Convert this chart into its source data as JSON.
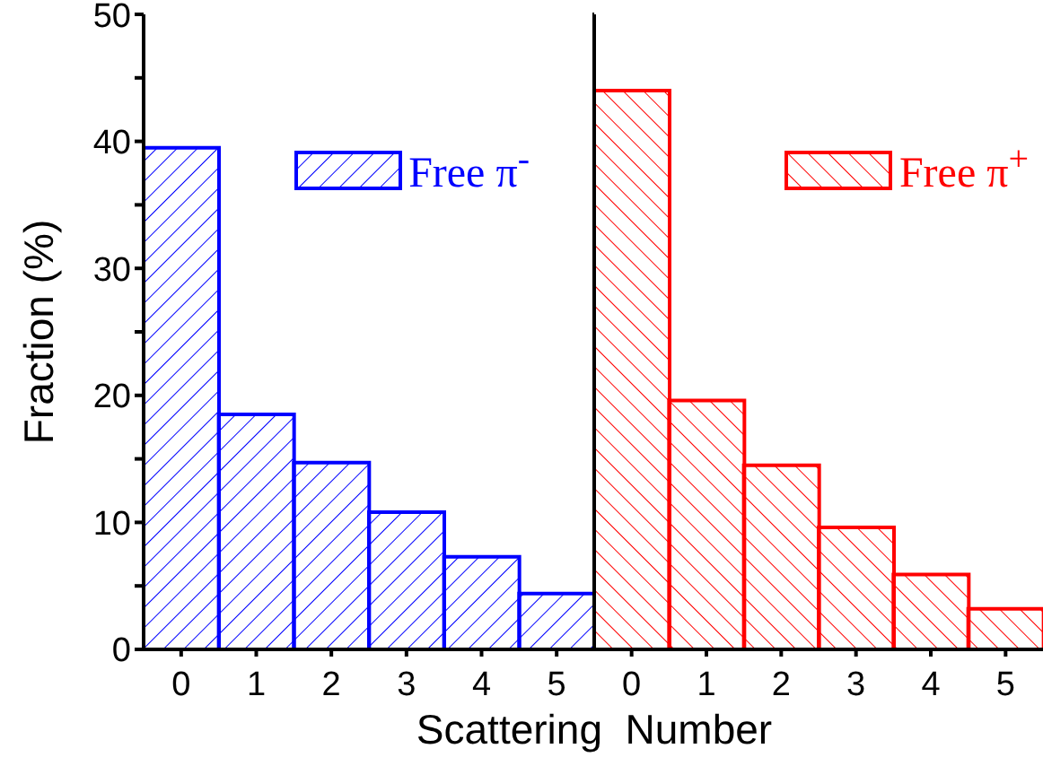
{
  "chart_data": [
    {
      "type": "bar",
      "ylabel": "Fraction (%)",
      "xlabel": "Scattering  Number",
      "categories": [
        "0",
        "1",
        "2",
        "3",
        "4",
        "5"
      ],
      "series": [
        {
          "name": "Free π$^{-}$",
          "color": "#0000ff",
          "values": [
            39.5,
            18.5,
            14.7,
            10.8,
            7.3,
            4.4
          ]
        }
      ],
      "ylim": [
        0,
        50
      ],
      "yticks": [
        0,
        {
          "value": 5,
          "label": null
        },
        10,
        {
          "value": 15,
          "label": null
        },
        20,
        {
          "value": 25,
          "label": null
        },
        30,
        {
          "value": 35,
          "label": null
        },
        40,
        {
          "value": 45,
          "label": null
        },
        50
      ],
      "legend": "top right",
      "grid": false
    },
    {
      "type": "bar",
      "categories": [
        "0",
        "1",
        "2",
        "3",
        "4",
        "5"
      ],
      "series": [
        {
          "name": "Free π$^{+}$",
          "color": "#ff0000",
          "values": [
            44.0,
            19.6,
            14.5,
            9.6,
            5.9,
            3.2
          ]
        }
      ],
      "ylim": [
        0,
        50
      ],
      "yticks": [
        0,
        {
          "value": 5,
          "label": null
        },
        {
          "value": 10,
          "label": null
        },
        {
          "value": 15,
          "label": null
        },
        {
          "value": 20,
          "label": null
        },
        {
          "value": 25,
          "label": null
        },
        {
          "value": 30,
          "label": null
        },
        {
          "value": 35,
          "label": null
        },
        {
          "value": 40,
          "label": null
        },
        {
          "value": 45,
          "label": null
        },
        {
          "value": 50,
          "label": null
        }
      ],
      "tick_labels": "x",
      "legend": "top right",
      "grid": false
    }
  ]
}
